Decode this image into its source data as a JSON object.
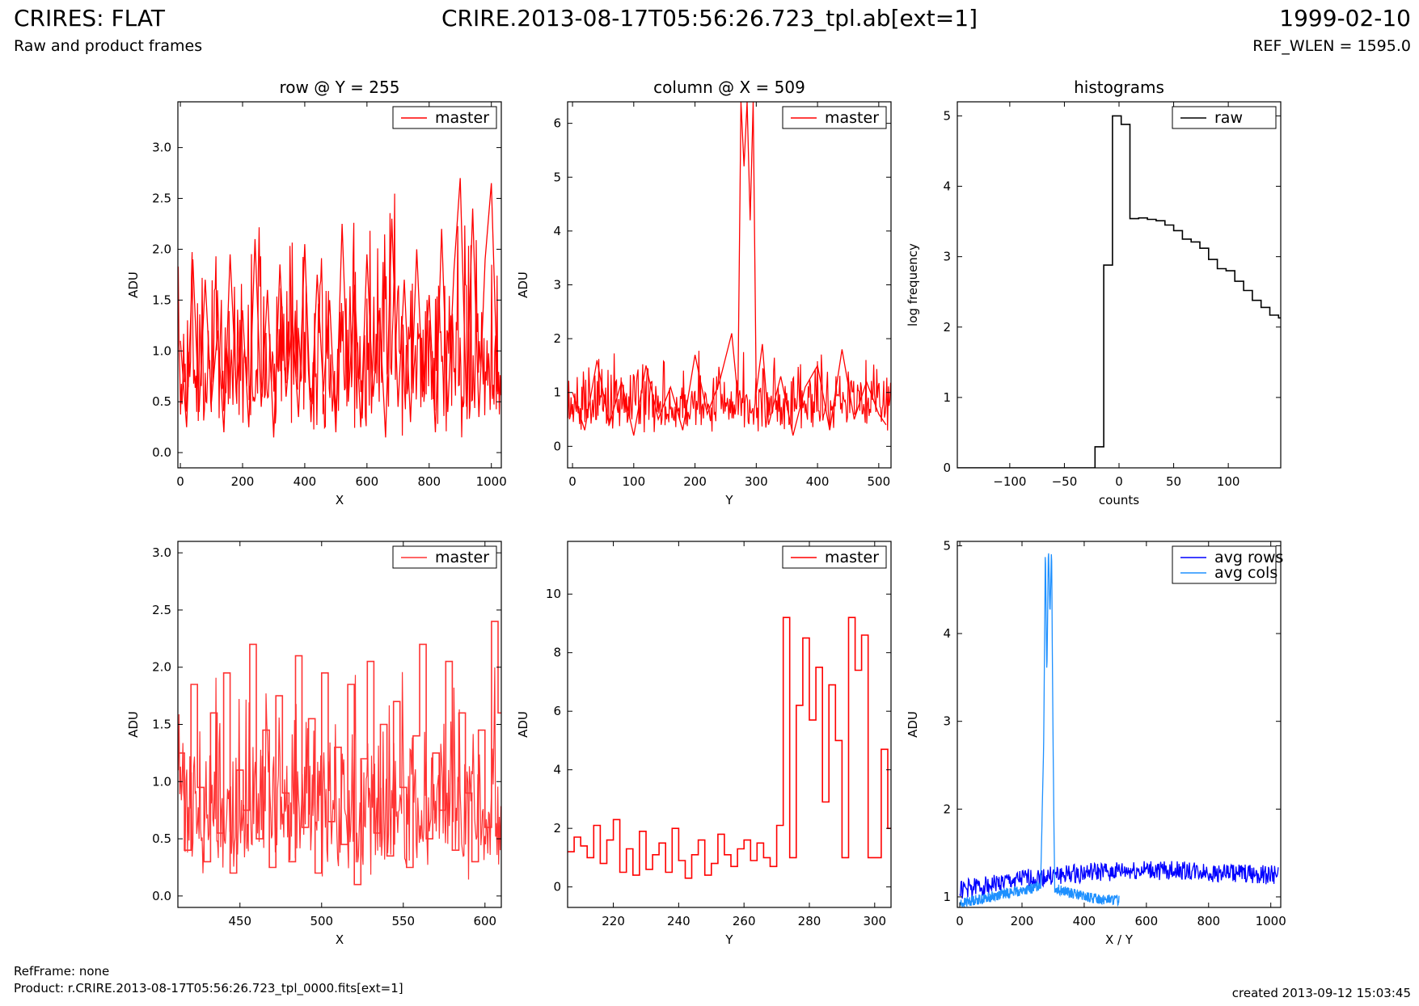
{
  "header": {
    "title_left": "CRIRES: FLAT",
    "subtitle_left": "Raw and product frames",
    "title_center": "CRIRE.2013-08-17T05:56:26.723_tpl.ab[ext=1]",
    "date_right": "1999-02-10",
    "refwlen": "REF_WLEN = 1595.0"
  },
  "footer": {
    "refframe": "RefFrame: none",
    "product": "Product: r.CRIRE.2013-08-17T05:56:26.723_tpl_0000.fits[ext=1]",
    "created": "created 2013-09-12 15:03:45"
  },
  "chart_data": [
    {
      "type": "line",
      "title": "row @ Y = 255",
      "xlabel": "X",
      "ylabel": "ADU",
      "xlim": [
        -8,
        1032
      ],
      "ylim": [
        -0.15,
        3.45
      ],
      "xticks": [
        0,
        200,
        400,
        600,
        800,
        1000
      ],
      "yticks": [
        0.0,
        0.5,
        1.0,
        1.5,
        2.0,
        2.5,
        3.0
      ],
      "ytick_decimals": 1,
      "legend": "top-right",
      "series": [
        {
          "name": "master",
          "color": "#ff0000",
          "step": false,
          "x": [
            0,
            20,
            40,
            60,
            80,
            100,
            120,
            140,
            160,
            180,
            200,
            220,
            240,
            260,
            280,
            300,
            320,
            340,
            360,
            380,
            400,
            420,
            440,
            460,
            480,
            500,
            520,
            540,
            560,
            580,
            600,
            620,
            640,
            660,
            680,
            700,
            720,
            740,
            760,
            780,
            800,
            820,
            840,
            860,
            880,
            900,
            920,
            940,
            960,
            980,
            1000,
            1020
          ],
          "y": [
            1.1,
            0.25,
            1.9,
            0.4,
            1.7,
            0.5,
            1.2,
            0.2,
            1.95,
            0.6,
            1.4,
            0.25,
            2.1,
            0.45,
            1.6,
            0.15,
            1.85,
            0.55,
            1.3,
            0.35,
            2.05,
            0.3,
            1.75,
            0.6,
            1.5,
            0.2,
            2.25,
            0.5,
            1.65,
            0.25,
            1.95,
            0.55,
            1.4,
            0.15,
            2.3,
            0.45,
            1.7,
            0.3,
            2.0,
            0.6,
            1.55,
            0.2,
            2.2,
            0.4,
            1.8,
            2.7,
            0.45,
            2.4,
            0.35,
            1.9,
            2.65,
            0.6
          ],
          "band": {
            "lo": 0.1,
            "hi": 2.7,
            "mid": 1.05
          }
        }
      ]
    },
    {
      "type": "line",
      "title": "column @ X = 509",
      "xlabel": "Y",
      "ylabel": "ADU",
      "xlim": [
        -8,
        520
      ],
      "ylim": [
        -0.4,
        6.4
      ],
      "xticks": [
        0,
        100,
        200,
        300,
        400,
        500
      ],
      "yticks": [
        0,
        1,
        2,
        3,
        4,
        5,
        6
      ],
      "ytick_decimals": 0,
      "legend": "top-right",
      "series": [
        {
          "name": "master",
          "color": "#ff0000",
          "step": false,
          "x": [
            0,
            20,
            40,
            60,
            80,
            100,
            120,
            140,
            160,
            180,
            200,
            220,
            240,
            260,
            270,
            275,
            280,
            285,
            290,
            295,
            300,
            310,
            320,
            340,
            360,
            380,
            400,
            420,
            440,
            460,
            480,
            500,
            512
          ],
          "y": [
            1.0,
            0.3,
            1.6,
            0.4,
            1.2,
            0.2,
            1.5,
            0.5,
            1.1,
            0.3,
            1.7,
            0.6,
            1.2,
            2.1,
            0.9,
            6.4,
            5.2,
            6.4,
            4.2,
            6.4,
            1.0,
            1.9,
            0.4,
            1.3,
            0.2,
            1.1,
            1.5,
            0.3,
            1.8,
            0.5,
            1.2,
            0.6,
            0.4
          ],
          "band": {
            "lo": 0.2,
            "hi": 1.9,
            "mid": 1.0
          }
        }
      ]
    },
    {
      "type": "line",
      "title": "histograms",
      "xlabel": "counts",
      "ylabel": "log frequency",
      "xlim": [
        -148,
        148
      ],
      "ylim": [
        0,
        5.2
      ],
      "xticks": [
        -100,
        -50,
        0,
        50,
        100
      ],
      "yticks": [
        0,
        1,
        2,
        3,
        4,
        5
      ],
      "ytick_decimals": 0,
      "legend": "top-right",
      "series": [
        {
          "name": "raw",
          "color": "#000000",
          "step": true,
          "x": [
            -148,
            -22,
            -14,
            -6,
            2,
            10,
            18,
            26,
            34,
            42,
            50,
            58,
            66,
            74,
            82,
            90,
            98,
            106,
            114,
            122,
            130,
            138,
            146
          ],
          "y": [
            0,
            0.3,
            2.88,
            5.0,
            4.88,
            3.54,
            3.55,
            3.53,
            3.51,
            3.45,
            3.37,
            3.25,
            3.21,
            3.12,
            2.96,
            2.83,
            2.8,
            2.65,
            2.52,
            2.38,
            2.28,
            2.17,
            2.13
          ]
        }
      ]
    },
    {
      "type": "line",
      "title": "",
      "xlabel": "X",
      "ylabel": "ADU",
      "xlim": [
        412,
        610
      ],
      "ylim": [
        -0.1,
        3.1
      ],
      "xticks": [
        450,
        500,
        550,
        600
      ],
      "yticks": [
        0.0,
        0.5,
        1.0,
        1.5,
        2.0,
        2.5,
        3.0
      ],
      "ytick_decimals": 1,
      "legend": "top-right",
      "series": [
        {
          "name": "master",
          "color": "#ff3333",
          "step": true,
          "x": [
            412,
            416,
            420,
            424,
            428,
            432,
            436,
            440,
            444,
            448,
            452,
            456,
            460,
            464,
            468,
            472,
            476,
            480,
            484,
            488,
            492,
            496,
            500,
            504,
            508,
            512,
            516,
            520,
            524,
            528,
            532,
            536,
            540,
            544,
            548,
            552,
            556,
            560,
            564,
            568,
            572,
            576,
            580,
            584,
            588,
            592,
            596,
            600,
            604,
            608
          ],
          "y": [
            1.25,
            0.4,
            1.85,
            0.95,
            0.3,
            1.6,
            0.55,
            1.95,
            0.2,
            1.1,
            0.75,
            2.2,
            0.5,
            1.45,
            0.25,
            1.75,
            0.9,
            0.3,
            2.1,
            0.6,
            1.55,
            0.2,
            1.95,
            0.65,
            1.3,
            0.45,
            1.85,
            0.1,
            1.2,
            2.05,
            0.55,
            1.5,
            0.35,
            1.7,
            0.95,
            0.25,
            1.4,
            2.2,
            0.5,
            1.25,
            0.75,
            2.05,
            0.4,
            1.6,
            0.9,
            0.3,
            1.45,
            0.6,
            2.4,
            1.6
          ],
          "band": {
            "lo": 0.1,
            "hi": 2.2,
            "mid": 1.05
          }
        }
      ]
    },
    {
      "type": "line",
      "title": "",
      "xlabel": "Y",
      "ylabel": "ADU",
      "xlim": [
        206,
        305
      ],
      "ylim": [
        -0.7,
        11.8
      ],
      "xticks": [
        220,
        240,
        260,
        280,
        300
      ],
      "yticks": [
        0,
        2,
        4,
        6,
        8,
        10
      ],
      "ytick_decimals": 0,
      "legend": "top-right",
      "series": [
        {
          "name": "master",
          "color": "#ff0000",
          "step": true,
          "x": [
            206,
            208,
            210,
            212,
            214,
            216,
            218,
            220,
            222,
            224,
            226,
            228,
            230,
            232,
            234,
            236,
            238,
            240,
            242,
            244,
            246,
            248,
            250,
            252,
            254,
            256,
            258,
            260,
            262,
            264,
            266,
            268,
            270,
            272,
            274,
            276,
            278,
            280,
            282,
            284,
            286,
            288,
            290,
            292,
            294,
            296,
            298,
            300,
            302,
            304
          ],
          "y": [
            1.2,
            1.7,
            1.4,
            1.0,
            2.1,
            0.8,
            1.6,
            2.3,
            0.5,
            1.3,
            0.4,
            1.9,
            0.6,
            1.1,
            1.5,
            0.5,
            2.0,
            0.9,
            0.3,
            1.1,
            1.6,
            0.4,
            0.8,
            1.8,
            1.1,
            0.7,
            1.3,
            1.6,
            0.9,
            1.5,
            1.0,
            0.7,
            2.1,
            9.2,
            1.0,
            6.2,
            8.5,
            5.7,
            7.5,
            2.9,
            6.9,
            5.0,
            1.0,
            9.2,
            7.4,
            8.6,
            1.0,
            1.0,
            4.7,
            2.0
          ]
        }
      ]
    },
    {
      "type": "line",
      "title": "",
      "xlabel": "X / Y",
      "ylabel": "ADU",
      "xlim": [
        -8,
        1032
      ],
      "ylim": [
        0.88,
        5.05
      ],
      "xticks": [
        0,
        200,
        400,
        600,
        800,
        1000
      ],
      "yticks": [
        1,
        2,
        3,
        4,
        5
      ],
      "ytick_decimals": 0,
      "legend": "top-right",
      "series": [
        {
          "name": "avg rows",
          "color": "#0000ff",
          "step": false,
          "x": [
            0,
            100,
            200,
            300,
            400,
            500,
            600,
            700,
            800,
            900,
            1000,
            1024
          ],
          "y": [
            1.08,
            1.14,
            1.2,
            1.24,
            1.27,
            1.29,
            1.3,
            1.3,
            1.28,
            1.26,
            1.25,
            1.24
          ],
          "wiggle": 0.11
        },
        {
          "name": "avg cols",
          "color": "#1e90ff",
          "step": false,
          "x": [
            0,
            40,
            80,
            120,
            160,
            200,
            240,
            260,
            270,
            275,
            280,
            285,
            290,
            295,
            300,
            305,
            320,
            360,
            400,
            440,
            480,
            512
          ],
          "y": [
            0.92,
            0.96,
            0.98,
            1.02,
            1.05,
            1.07,
            1.1,
            1.15,
            2.8,
            5.0,
            3.5,
            5.0,
            4.2,
            5.0,
            2.7,
            1.1,
            1.08,
            1.04,
            1.0,
            0.98,
            0.97,
            0.96
          ],
          "wiggle": 0.06
        }
      ]
    }
  ]
}
